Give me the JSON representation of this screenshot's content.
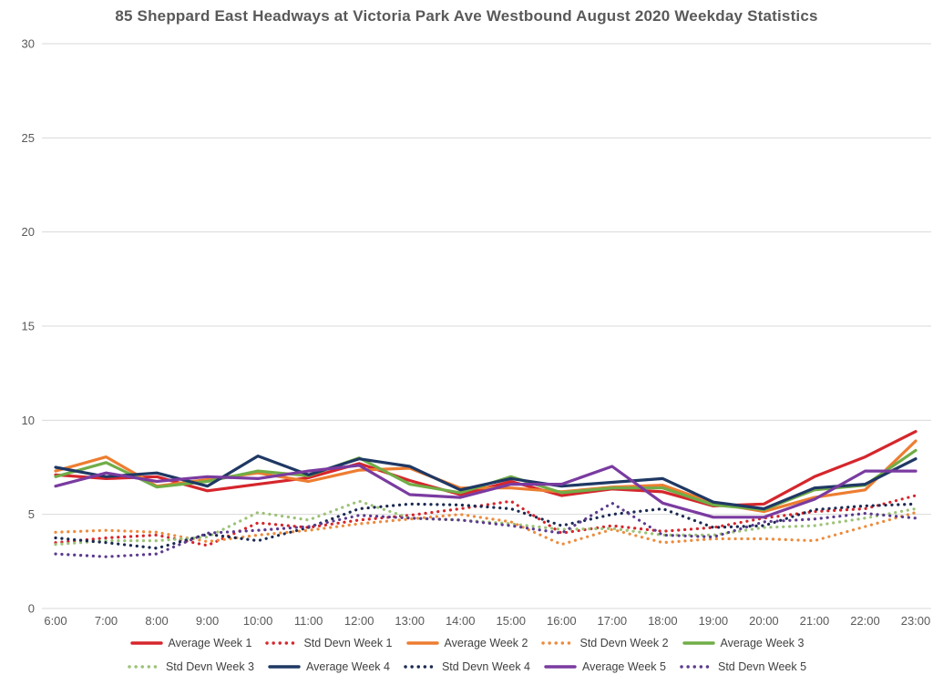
{
  "chart_data": {
    "type": "line",
    "title": "85 Sheppard East Headways at Victoria Park Ave Westbound August 2020 Weekday Statistics",
    "x_labels": [
      "6:00",
      "7:00",
      "8:00",
      "9:00",
      "10:00",
      "11:00",
      "12:00",
      "13:00",
      "14:00",
      "15:00",
      "16:00",
      "17:00",
      "18:00",
      "19:00",
      "20:00",
      "21:00",
      "22:00",
      "23:00"
    ],
    "xlabel": "",
    "ylabel": "",
    "ylim": [
      0,
      30
    ],
    "y_ticks": [
      0,
      5,
      10,
      15,
      20,
      25,
      30
    ],
    "grid": "horizontal",
    "gridline_color": "#D9D9D9",
    "legend_position": "bottom",
    "legend_rows": [
      [
        0,
        1,
        2,
        3,
        4
      ],
      [
        5,
        6,
        7,
        8,
        9
      ]
    ],
    "series": [
      {
        "name": "Average Week 1",
        "style": "solid",
        "color": "#D5262C",
        "values": [
          7.1,
          6.9,
          7.0,
          6.25,
          6.6,
          6.95,
          7.7,
          6.8,
          6.05,
          6.75,
          6.0,
          6.35,
          6.2,
          5.45,
          5.55,
          7.0,
          8.05,
          9.4
        ]
      },
      {
        "name": "Std Devn Week 1",
        "style": "dotted",
        "color": "#D5262C",
        "values": [
          3.5,
          3.75,
          3.9,
          3.35,
          4.55,
          4.3,
          4.7,
          4.95,
          5.3,
          5.7,
          4.0,
          4.4,
          4.1,
          4.3,
          4.8,
          5.15,
          5.3,
          6.0
        ]
      },
      {
        "name": "Average Week 2",
        "style": "solid",
        "color": "#ED7D31",
        "values": [
          7.3,
          8.05,
          6.5,
          6.85,
          7.2,
          6.75,
          7.35,
          7.45,
          6.4,
          6.4,
          6.2,
          6.45,
          6.55,
          5.6,
          5.15,
          5.9,
          6.3,
          8.9
        ]
      },
      {
        "name": "Std Devn Week 2",
        "style": "dotted",
        "color": "#ED8B3D",
        "values": [
          4.05,
          4.15,
          4.05,
          3.55,
          3.9,
          4.15,
          4.5,
          4.75,
          5.0,
          4.6,
          3.4,
          4.2,
          3.5,
          3.7,
          3.7,
          3.6,
          4.35,
          5.1
        ]
      },
      {
        "name": "Average Week 3",
        "style": "solid",
        "color": "#70AD47",
        "values": [
          7.0,
          7.75,
          6.45,
          6.75,
          7.3,
          7.05,
          8.0,
          6.6,
          6.15,
          7.0,
          6.15,
          6.4,
          6.4,
          5.5,
          5.25,
          6.3,
          6.55,
          8.4
        ]
      },
      {
        "name": "Std Devn Week 3",
        "style": "dotted",
        "color": "#9CC277",
        "values": [
          3.4,
          3.6,
          3.6,
          3.8,
          5.1,
          4.7,
          5.7,
          4.8,
          4.7,
          4.5,
          4.2,
          4.25,
          3.9,
          3.9,
          4.3,
          4.4,
          4.8,
          5.3
        ]
      },
      {
        "name": "Average Week 4",
        "style": "solid",
        "color": "#1F3864",
        "values": [
          7.5,
          7.0,
          7.2,
          6.5,
          8.1,
          7.1,
          7.95,
          7.55,
          6.3,
          6.9,
          6.5,
          6.7,
          6.9,
          5.65,
          5.3,
          6.4,
          6.6,
          7.95
        ]
      },
      {
        "name": "Std Devn Week 4",
        "style": "dotted",
        "color": "#1B2A52",
        "values": [
          3.75,
          3.5,
          3.2,
          3.95,
          3.6,
          4.3,
          5.3,
          5.55,
          5.5,
          5.3,
          4.4,
          5.0,
          5.3,
          4.3,
          4.4,
          5.25,
          5.45,
          5.55
        ]
      },
      {
        "name": "Average Week 5",
        "style": "solid",
        "color": "#7A3BA0",
        "values": [
          6.5,
          7.2,
          6.75,
          7.0,
          6.9,
          7.3,
          7.6,
          6.05,
          5.9,
          6.6,
          6.6,
          7.55,
          5.6,
          4.85,
          4.85,
          5.8,
          7.3,
          7.3
        ]
      },
      {
        "name": "Std Devn Week 5",
        "style": "dotted",
        "color": "#5C3B8E",
        "values": [
          2.9,
          2.75,
          2.9,
          4.0,
          4.15,
          4.35,
          4.95,
          4.8,
          4.7,
          4.4,
          4.0,
          5.6,
          3.9,
          3.8,
          4.6,
          4.75,
          5.05,
          4.8
        ]
      }
    ]
  }
}
